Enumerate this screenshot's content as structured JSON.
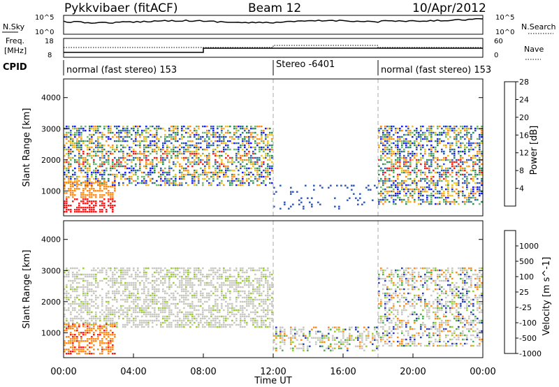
{
  "header": {
    "station": "Pykkvibaer (fitACF)",
    "beam": "Beam 12",
    "date": "10/Apr/2012"
  },
  "strips": {
    "nsky_label": "N.Sky",
    "nsky_ticks": [
      "10^5",
      "10^0"
    ],
    "nsearch_label": "N.Search",
    "nsearch_ticks": [
      "10^5",
      "10^0"
    ],
    "freq_label": "Freq.",
    "freq_unit": "[MHz]",
    "freq_ticks": [
      "18",
      "8"
    ],
    "nave_label": "Nave",
    "nave_ticks": [
      "60",
      "0"
    ],
    "cpid_label": "CPID"
  },
  "cpid_segments": [
    {
      "label": "normal (fast stereo) 153",
      "start_hr": 0,
      "end_hr": 12
    },
    {
      "label": "Stereo -6401",
      "start_hr": 12,
      "end_hr": 18
    },
    {
      "label": "normal (fast stereo) 153",
      "start_hr": 18,
      "end_hr": 24
    }
  ],
  "x_axis": {
    "label": "Time UT",
    "ticks": [
      "00:00",
      "04:00",
      "08:00",
      "12:00",
      "16:00",
      "20:00",
      "00:00"
    ]
  },
  "chart_data": [
    {
      "type": "heatmap",
      "title": "Power",
      "ylabel": "Slant Range [km]",
      "yticks": [
        "1000",
        "2000",
        "3000",
        "4000"
      ],
      "ylim": [
        200,
        4600
      ],
      "colorbar_label": "Power [dB]",
      "colorbar_ticks": [
        "4",
        "8",
        "12",
        "16",
        "20",
        "24",
        "28"
      ],
      "colorbar_colors": [
        "#1a1aff",
        "#2f58b8",
        "#2e8b57",
        "#6fb86f",
        "#f0c020",
        "#ff8c1a",
        "#ff1a1a"
      ],
      "scatter_regions": [
        {
          "start_hr": 0,
          "end_hr": 12,
          "range_km": [
            1200,
            3100
          ],
          "level": "medium"
        },
        {
          "start_hr": 0,
          "end_hr": 3,
          "range_km": [
            300,
            1300
          ],
          "level": "high"
        },
        {
          "start_hr": 12,
          "end_hr": 18,
          "range_km": [
            400,
            1200
          ],
          "level": "low"
        },
        {
          "start_hr": 18,
          "end_hr": 24,
          "range_km": [
            600,
            3100
          ],
          "level": "medium"
        }
      ]
    },
    {
      "type": "heatmap",
      "title": "Velocity",
      "ylabel": "Slant Range [km]",
      "yticks": [
        "1000",
        "2000",
        "3000",
        "4000"
      ],
      "ylim": [
        200,
        4600
      ],
      "colorbar_label": "Velocity [m s^-1]",
      "colorbar_ticks": [
        "1000",
        "500",
        "100",
        "25",
        "-25",
        "-100",
        "-500",
        "-1000"
      ],
      "colorbar_colors": [
        "#2a3fb8",
        "#2e7d4f",
        "#4caf50",
        "#9acd32",
        "#c8c8c0",
        "#ff8c1a",
        "#ff5a1a",
        "#ff1a1a"
      ],
      "scatter_regions": [
        {
          "start_hr": 0,
          "end_hr": 12,
          "range_km": [
            1200,
            3100
          ],
          "level": "ground"
        },
        {
          "start_hr": 0,
          "end_hr": 3,
          "range_km": [
            300,
            1300
          ],
          "level": "negative"
        },
        {
          "start_hr": 12,
          "end_hr": 18,
          "range_km": [
            400,
            1200
          ],
          "level": "mixed"
        },
        {
          "start_hr": 18,
          "end_hr": 24,
          "range_km": [
            600,
            3100
          ],
          "level": "mixed"
        }
      ]
    }
  ]
}
